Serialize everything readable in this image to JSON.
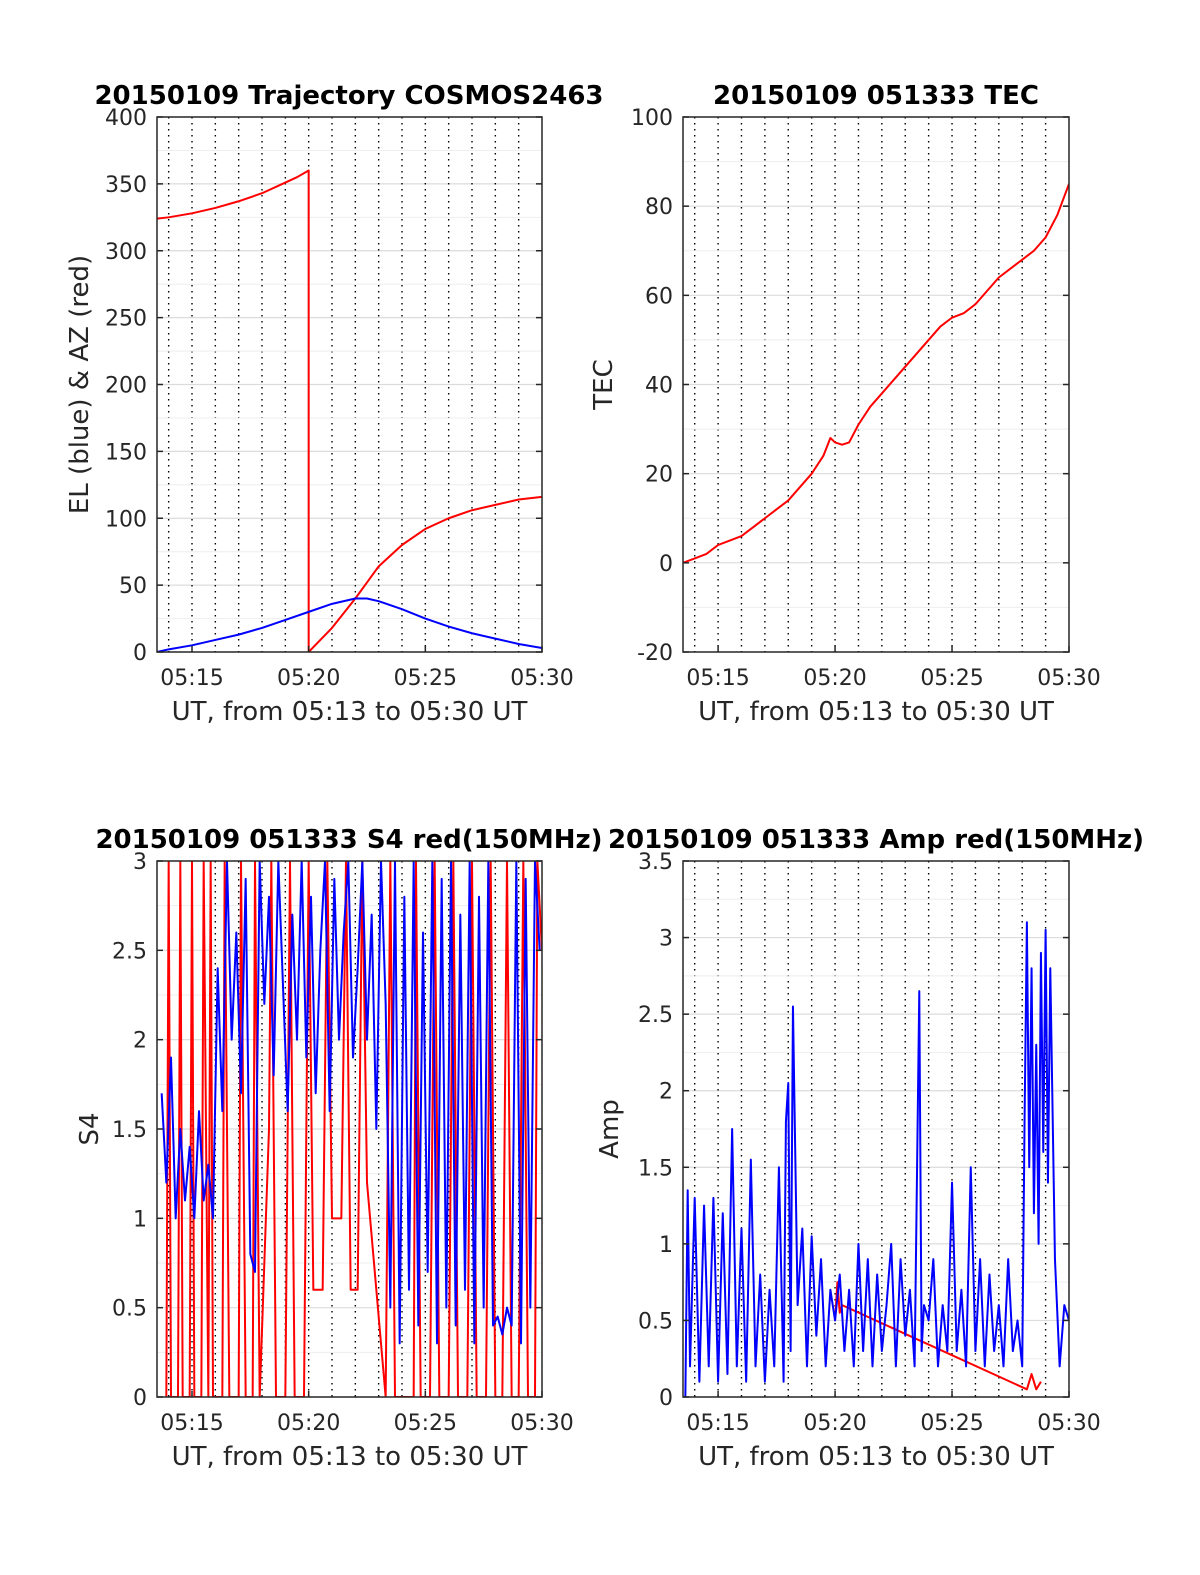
{
  "figure": {
    "x_tick_labels": [
      "05:15",
      "05:20",
      "05:25",
      "05:30"
    ]
  },
  "chart_data": [
    {
      "type": "line",
      "title": "20150109 Trajectory COSMOS2463",
      "xlabel": "UT, from 05:13 to 05:30 UT",
      "ylabel": "EL (blue) & AZ (red)",
      "xlim": [
        13.5,
        30
      ],
      "ylim": [
        0,
        400
      ],
      "yticks": [
        "0",
        "50",
        "100",
        "150",
        "200",
        "250",
        "300",
        "350",
        "400"
      ],
      "grid": true,
      "series": [
        {
          "color": "#ff0000",
          "x": [
            13.5,
            14,
            15,
            16,
            17,
            18,
            19,
            19.5,
            20,
            20,
            21,
            22,
            22.5,
            23,
            24,
            25,
            26,
            27,
            28,
            29,
            30
          ],
          "y": [
            324,
            325,
            328,
            332,
            337,
            343,
            351,
            355,
            360,
            0,
            18,
            40,
            52,
            64,
            80,
            92,
            100,
            106,
            110,
            114,
            116
          ]
        },
        {
          "color": "#0000ff",
          "x": [
            13.5,
            14,
            15,
            16,
            17,
            18,
            19,
            20,
            21,
            22,
            22.5,
            23,
            24,
            25,
            26,
            27,
            28,
            29,
            30
          ],
          "y": [
            0,
            2,
            5,
            9,
            13,
            18,
            24,
            30,
            36,
            40,
            40,
            38,
            32,
            25,
            19,
            14,
            10,
            6,
            3
          ]
        }
      ]
    },
    {
      "type": "line",
      "title": "20150109 051333 TEC",
      "xlabel": "UT, from 05:13 to 05:30 UT",
      "ylabel": "TEC",
      "xlim": [
        13.5,
        30
      ],
      "ylim": [
        -20,
        100
      ],
      "yticks": [
        "-20",
        "0",
        "20",
        "40",
        "60",
        "80",
        "100"
      ],
      "grid": true,
      "series": [
        {
          "color": "#ff0000",
          "x": [
            13.5,
            14,
            14.5,
            15,
            15.5,
            16,
            16.5,
            17,
            17.5,
            18,
            18.5,
            19,
            19.5,
            19.8,
            20,
            20.3,
            20.6,
            21,
            21.5,
            22,
            22.5,
            23,
            23.5,
            24,
            24.5,
            25,
            25.5,
            26,
            26.5,
            27,
            27.5,
            28,
            28.5,
            29,
            29.5,
            30
          ],
          "y": [
            0,
            1,
            2,
            4,
            5,
            6,
            8,
            10,
            12,
            14,
            17,
            20,
            24,
            28,
            27,
            26.5,
            27,
            31,
            35,
            38,
            41,
            44,
            47,
            50,
            53,
            55,
            56,
            58,
            61,
            64,
            66,
            68,
            70,
            73,
            78,
            85
          ]
        }
      ]
    },
    {
      "type": "line",
      "title": "20150109 051333 S4 red(150MHz)",
      "xlabel": "UT, from 05:13 to 05:30 UT",
      "ylabel": "S4",
      "xlim": [
        13.5,
        30
      ],
      "ylim": [
        0,
        3
      ],
      "yticks": [
        "0",
        "0.5",
        "1",
        "1.5",
        "2",
        "2.5",
        "3"
      ],
      "grid": true,
      "series": [
        {
          "color": "#ff0000",
          "x": [
            13.9,
            14.0,
            14.1,
            14.4,
            14.5,
            14.6,
            14.9,
            15.0,
            15.1,
            15.4,
            15.5,
            15.7,
            15.8,
            15.9,
            16.3,
            16.4,
            16.6,
            17.0,
            17.1,
            17.3,
            17.6,
            17.7,
            17.9,
            18.3,
            18.4,
            18.6,
            19.0,
            19.2,
            19.4,
            19.8,
            20.0,
            20.2,
            20.6,
            20.8,
            21.0,
            21.4,
            21.6,
            21.8,
            22.1,
            22.3,
            22.5,
            23.3,
            23.5,
            23.7,
            24.5,
            24.6,
            24.8,
            25.2,
            25.4,
            25.6,
            26.0,
            26.2,
            26.4,
            26.8,
            27.0,
            27.2,
            27.6,
            27.8,
            28.0,
            28.3,
            28.5,
            28.7,
            29.0,
            29.2,
            29.4,
            29.7,
            29.8,
            30.0
          ],
          "y": [
            0,
            3,
            0,
            0,
            3,
            0,
            0,
            3,
            0,
            0,
            3,
            0,
            3,
            0,
            0,
            3,
            0,
            0,
            3,
            0,
            0,
            3,
            0,
            1.5,
            3,
            0,
            0,
            3,
            0,
            0,
            3,
            0.6,
            0.6,
            3,
            1.0,
            1.0,
            3,
            0.6,
            0.6,
            3,
            1.2,
            0,
            3,
            0,
            0,
            3,
            0,
            0,
            3,
            0,
            0,
            3,
            0,
            0,
            3,
            0,
            0,
            3,
            0,
            0,
            3,
            0,
            0,
            3,
            0,
            0,
            3,
            2.5
          ]
        },
        {
          "color": "#0000ff",
          "x": [
            13.7,
            13.9,
            14.1,
            14.3,
            14.5,
            14.7,
            14.9,
            15.1,
            15.3,
            15.5,
            15.7,
            15.9,
            16.1,
            16.3,
            16.5,
            16.7,
            16.9,
            17.1,
            17.3,
            17.5,
            17.7,
            17.9,
            18.1,
            18.3,
            18.5,
            18.7,
            18.9,
            19.1,
            19.3,
            19.5,
            19.7,
            19.9,
            20.1,
            20.3,
            20.5,
            20.7,
            20.9,
            21.1,
            21.3,
            21.5,
            21.7,
            21.9,
            22.1,
            22.3,
            22.5,
            22.7,
            22.9,
            23.1,
            23.3,
            23.5,
            23.7,
            23.9,
            24.1,
            24.3,
            24.5,
            24.7,
            24.9,
            25.1,
            25.3,
            25.5,
            25.7,
            25.9,
            26.1,
            26.3,
            26.5,
            26.7,
            26.9,
            27.1,
            27.3,
            27.5,
            27.7,
            27.9,
            28.1,
            28.3,
            28.5,
            28.7,
            28.9,
            29.1,
            29.3,
            29.5,
            29.7,
            29.9
          ],
          "y": [
            1.7,
            1.2,
            1.9,
            1.0,
            1.5,
            1.1,
            1.4,
            1.0,
            1.6,
            1.1,
            1.3,
            1.0,
            2.4,
            1.6,
            3.0,
            2.0,
            2.6,
            1.7,
            2.9,
            0.8,
            0.7,
            3.0,
            2.2,
            2.8,
            1.8,
            3.0,
            2.3,
            1.6,
            2.7,
            2.0,
            3.0,
            1.9,
            2.8,
            1.7,
            2.5,
            3.0,
            1.6,
            2.9,
            2.0,
            2.6,
            3.0,
            1.9,
            2.4,
            3.0,
            2.0,
            2.7,
            1.5,
            3.0,
            2.2,
            0.5,
            3.0,
            0.3,
            2.8,
            0.6,
            3.0,
            0.4,
            2.6,
            0.7,
            3.0,
            0.3,
            2.9,
            0.5,
            3.0,
            0.4,
            2.7,
            0.6,
            3.0,
            0.3,
            2.8,
            0.5,
            3.0,
            0.4,
            0.45,
            0.35,
            0.5,
            0.4,
            3.0,
            0.3,
            2.9,
            0.5,
            3.0,
            2.5
          ]
        }
      ]
    },
    {
      "type": "line",
      "title": "20150109 051333 Amp red(150MHz)",
      "xlabel": "UT, from 05:13 to 05:30 UT",
      "ylabel": "Amp",
      "xlim": [
        13.5,
        30
      ],
      "ylim": [
        0,
        3.5
      ],
      "yticks": [
        "0",
        "0.5",
        "1",
        "1.5",
        "2",
        "2.5",
        "3",
        "3.5"
      ],
      "grid": true,
      "series": [
        {
          "color": "#ff0000",
          "x": [
            20.0,
            20.1,
            20.2,
            20.3,
            28.2,
            28.4,
            28.6,
            28.8
          ],
          "y": [
            0.5,
            0.75,
            0.55,
            0.6,
            0.05,
            0.15,
            0.05,
            0.1
          ]
        },
        {
          "color": "#0000ff",
          "x": [
            13.6,
            13.7,
            13.8,
            14.0,
            14.2,
            14.4,
            14.6,
            14.8,
            15.0,
            15.2,
            15.4,
            15.6,
            15.8,
            16.0,
            16.2,
            16.4,
            16.6,
            16.8,
            17.0,
            17.2,
            17.4,
            17.6,
            17.8,
            17.9,
            18.0,
            18.1,
            18.2,
            18.4,
            18.6,
            18.8,
            19.0,
            19.2,
            19.4,
            19.6,
            19.8,
            20.0,
            20.2,
            20.4,
            20.6,
            20.8,
            21.0,
            21.2,
            21.4,
            21.6,
            21.8,
            22.0,
            22.2,
            22.4,
            22.6,
            22.8,
            23.0,
            23.2,
            23.4,
            23.6,
            23.7,
            23.8,
            24.0,
            24.2,
            24.4,
            24.6,
            24.8,
            25.0,
            25.2,
            25.4,
            25.6,
            25.8,
            26.0,
            26.2,
            26.4,
            26.6,
            26.8,
            27.0,
            27.2,
            27.4,
            27.6,
            27.8,
            28.0,
            28.1,
            28.2,
            28.3,
            28.4,
            28.5,
            28.6,
            28.7,
            28.8,
            28.9,
            29.0,
            29.1,
            29.2,
            29.4,
            29.6,
            29.8,
            30.0
          ],
          "y": [
            0,
            1.35,
            0.2,
            1.3,
            0.1,
            1.25,
            0.2,
            1.3,
            0.1,
            1.2,
            0.15,
            1.75,
            0.2,
            1.1,
            0.1,
            1.55,
            0.2,
            0.8,
            0.1,
            0.7,
            0.2,
            1.5,
            0.1,
            1.8,
            2.05,
            0.3,
            2.55,
            0.6,
            1.1,
            0.2,
            1.05,
            0.4,
            0.9,
            0.2,
            0.7,
            0.5,
            0.8,
            0.3,
            0.7,
            0.2,
            1.0,
            0.3,
            0.9,
            0.2,
            0.8,
            0.3,
            0.6,
            1.0,
            0.2,
            0.9,
            0.4,
            0.7,
            0.2,
            2.65,
            0.3,
            0.6,
            0.5,
            0.9,
            0.2,
            0.6,
            0.3,
            1.4,
            0.3,
            0.7,
            0.2,
            1.5,
            0.3,
            0.9,
            0.2,
            0.8,
            0.3,
            0.6,
            0.2,
            0.9,
            0.3,
            0.5,
            0.2,
            1.8,
            3.1,
            1.5,
            2.8,
            1.2,
            2.3,
            1.0,
            2.9,
            1.6,
            3.05,
            1.4,
            2.8,
            0.9,
            0.2,
            0.6,
            0.5
          ]
        }
      ]
    }
  ]
}
